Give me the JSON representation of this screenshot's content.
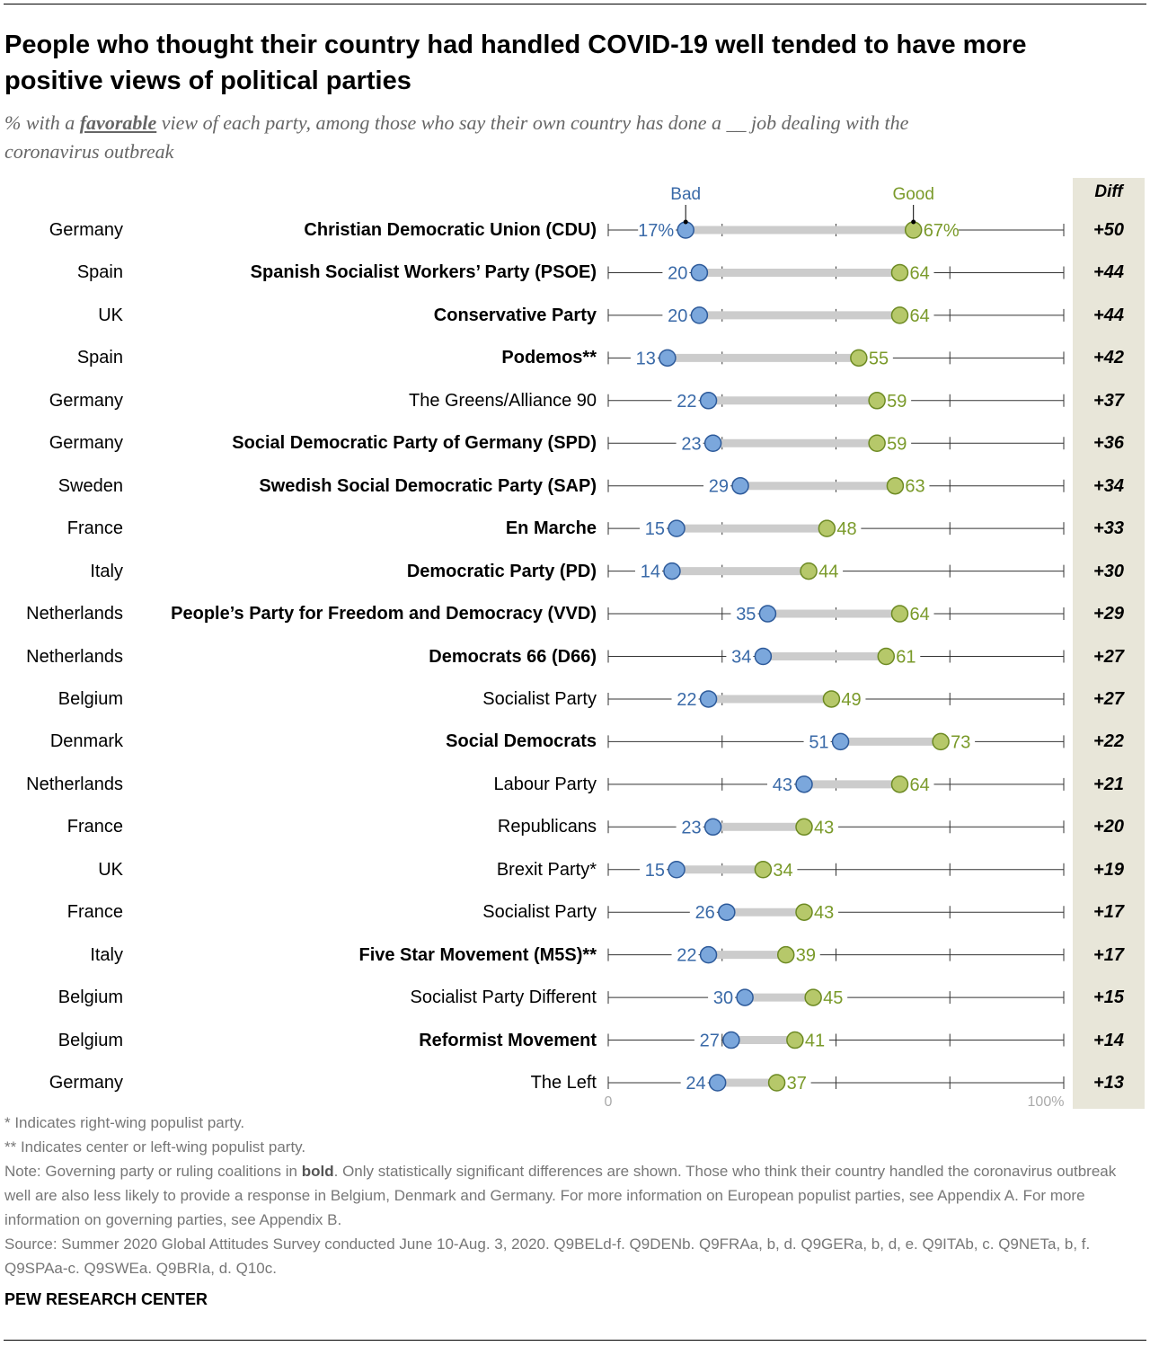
{
  "header": {
    "title_line1": "People who thought their country had handled COVID-19 well tended to have more",
    "title_line2": "positive views of political parties",
    "subtitle_pre": "% with a ",
    "subtitle_em": "favorable",
    "subtitle_post": " view of each party, among those who say their own country has done a __ job dealing with the",
    "subtitle_line2": "coronavirus outbreak"
  },
  "legend": {
    "bad": "Bad",
    "good": "Good"
  },
  "diff_header": "Diff",
  "axis": {
    "min_label": "0",
    "max_label": "100%"
  },
  "colors": {
    "bad": "#7ba7dc",
    "bad_stroke": "#2d5a9a",
    "good": "#b6c86a",
    "good_stroke": "#6d8a23",
    "bad_text": "#3a6aa8",
    "good_text": "#7a9a2a",
    "bar": "#cccccc",
    "diff_bg": "#e8e6d9"
  },
  "chart_data": {
    "type": "dot-range",
    "title": "People who thought their country had handled COVID-19 well tended to have more positive views of political parties",
    "xlim": [
      0,
      100
    ],
    "series": [
      {
        "name": "Bad"
      },
      {
        "name": "Good"
      }
    ],
    "rows": [
      {
        "country": "Germany",
        "party": "Christian Democratic Union (CDU)",
        "bold": true,
        "bad": 17,
        "good": 67,
        "bad_label": "17%",
        "good_label": "67%",
        "diff": "+50"
      },
      {
        "country": "Spain",
        "party": "Spanish Socialist Workers’ Party (PSOE)",
        "bold": true,
        "bad": 20,
        "good": 64,
        "bad_label": "20",
        "good_label": "64",
        "diff": "+44"
      },
      {
        "country": "UK",
        "party": "Conservative Party",
        "bold": true,
        "bad": 20,
        "good": 64,
        "bad_label": "20",
        "good_label": "64",
        "diff": "+44"
      },
      {
        "country": "Spain",
        "party": "Podemos**",
        "bold": true,
        "bad": 13,
        "good": 55,
        "bad_label": "13",
        "good_label": "55",
        "diff": "+42"
      },
      {
        "country": "Germany",
        "party": "The Greens/Alliance 90",
        "bold": false,
        "bad": 22,
        "good": 59,
        "bad_label": "22",
        "good_label": "59",
        "diff": "+37"
      },
      {
        "country": "Germany",
        "party": "Social Democratic Party of Germany (SPD)",
        "bold": true,
        "bad": 23,
        "good": 59,
        "bad_label": "23",
        "good_label": "59",
        "diff": "+36"
      },
      {
        "country": "Sweden",
        "party": "Swedish Social Democratic Party (SAP)",
        "bold": true,
        "bad": 29,
        "good": 63,
        "bad_label": "29",
        "good_label": "63",
        "diff": "+34"
      },
      {
        "country": "France",
        "party": "En Marche",
        "bold": true,
        "bad": 15,
        "good": 48,
        "bad_label": "15",
        "good_label": "48",
        "diff": "+33"
      },
      {
        "country": "Italy",
        "party": "Democratic Party (PD)",
        "bold": true,
        "bad": 14,
        "good": 44,
        "bad_label": "14",
        "good_label": "44",
        "diff": "+30"
      },
      {
        "country": "Netherlands",
        "party": "People’s Party for Freedom and Democracy (VVD)",
        "bold": true,
        "bad": 35,
        "good": 64,
        "bad_label": "35",
        "good_label": "64",
        "diff": "+29"
      },
      {
        "country": "Netherlands",
        "party": "Democrats 66 (D66)",
        "bold": true,
        "bad": 34,
        "good": 61,
        "bad_label": "34",
        "good_label": "61",
        "diff": "+27"
      },
      {
        "country": "Belgium",
        "party": "Socialist Party",
        "bold": false,
        "bad": 22,
        "good": 49,
        "bad_label": "22",
        "good_label": "49",
        "diff": "+27"
      },
      {
        "country": "Denmark",
        "party": "Social Democrats",
        "bold": true,
        "bad": 51,
        "good": 73,
        "bad_label": "51",
        "good_label": "73",
        "diff": "+22"
      },
      {
        "country": "Netherlands",
        "party": "Labour Party",
        "bold": false,
        "bad": 43,
        "good": 64,
        "bad_label": "43",
        "good_label": "64",
        "diff": "+21"
      },
      {
        "country": "France",
        "party": "Republicans",
        "bold": false,
        "bad": 23,
        "good": 43,
        "bad_label": "23",
        "good_label": "43",
        "diff": "+20"
      },
      {
        "country": "UK",
        "party": "Brexit Party*",
        "bold": false,
        "bad": 15,
        "good": 34,
        "bad_label": "15",
        "good_label": "34",
        "diff": "+19"
      },
      {
        "country": "France",
        "party": "Socialist Party",
        "bold": false,
        "bad": 26,
        "good": 43,
        "bad_label": "26",
        "good_label": "43",
        "diff": "+17"
      },
      {
        "country": "Italy",
        "party": "Five Star Movement (M5S)**",
        "bold": true,
        "bad": 22,
        "good": 39,
        "bad_label": "22",
        "good_label": "39",
        "diff": "+17"
      },
      {
        "country": "Belgium",
        "party": "Socialist Party Different",
        "bold": false,
        "bad": 30,
        "good": 45,
        "bad_label": "30",
        "good_label": "45",
        "diff": "+15"
      },
      {
        "country": "Belgium",
        "party": "Reformist Movement",
        "bold": true,
        "bad": 27,
        "good": 41,
        "bad_label": "27",
        "good_label": "41",
        "diff": "+14"
      },
      {
        "country": "Germany",
        "party": "The Left",
        "bold": false,
        "bad": 24,
        "good": 37,
        "bad_label": "24",
        "good_label": "37",
        "diff": "+13"
      }
    ]
  },
  "footnotes": {
    "note1": "* Indicates right-wing populist party.",
    "note2": "** Indicates center or left-wing populist party.",
    "note3_pre": "Note: Governing party or ruling coalitions in ",
    "note3_bold": "bold",
    "note3_post": ". Only statistically significant differences are shown. Those who think their country handled the coronavirus outbreak well are also less likely to provide a response in Belgium, Denmark and Germany. For more information on European populist parties, see Appendix A. For more information on governing parties, see Appendix B.",
    "source": "Source: Summer 2020 Global Attitudes Survey conducted June 10-Aug. 3, 2020. Q9BELd-f. Q9DENb. Q9FRAa, b, d. Q9GERa, b, d, e. Q9ITAb, c. Q9NETa, b, f. Q9SPAa-c. Q9SWEa. Q9BRIa, d. Q10c."
  },
  "org": "PEW RESEARCH CENTER"
}
